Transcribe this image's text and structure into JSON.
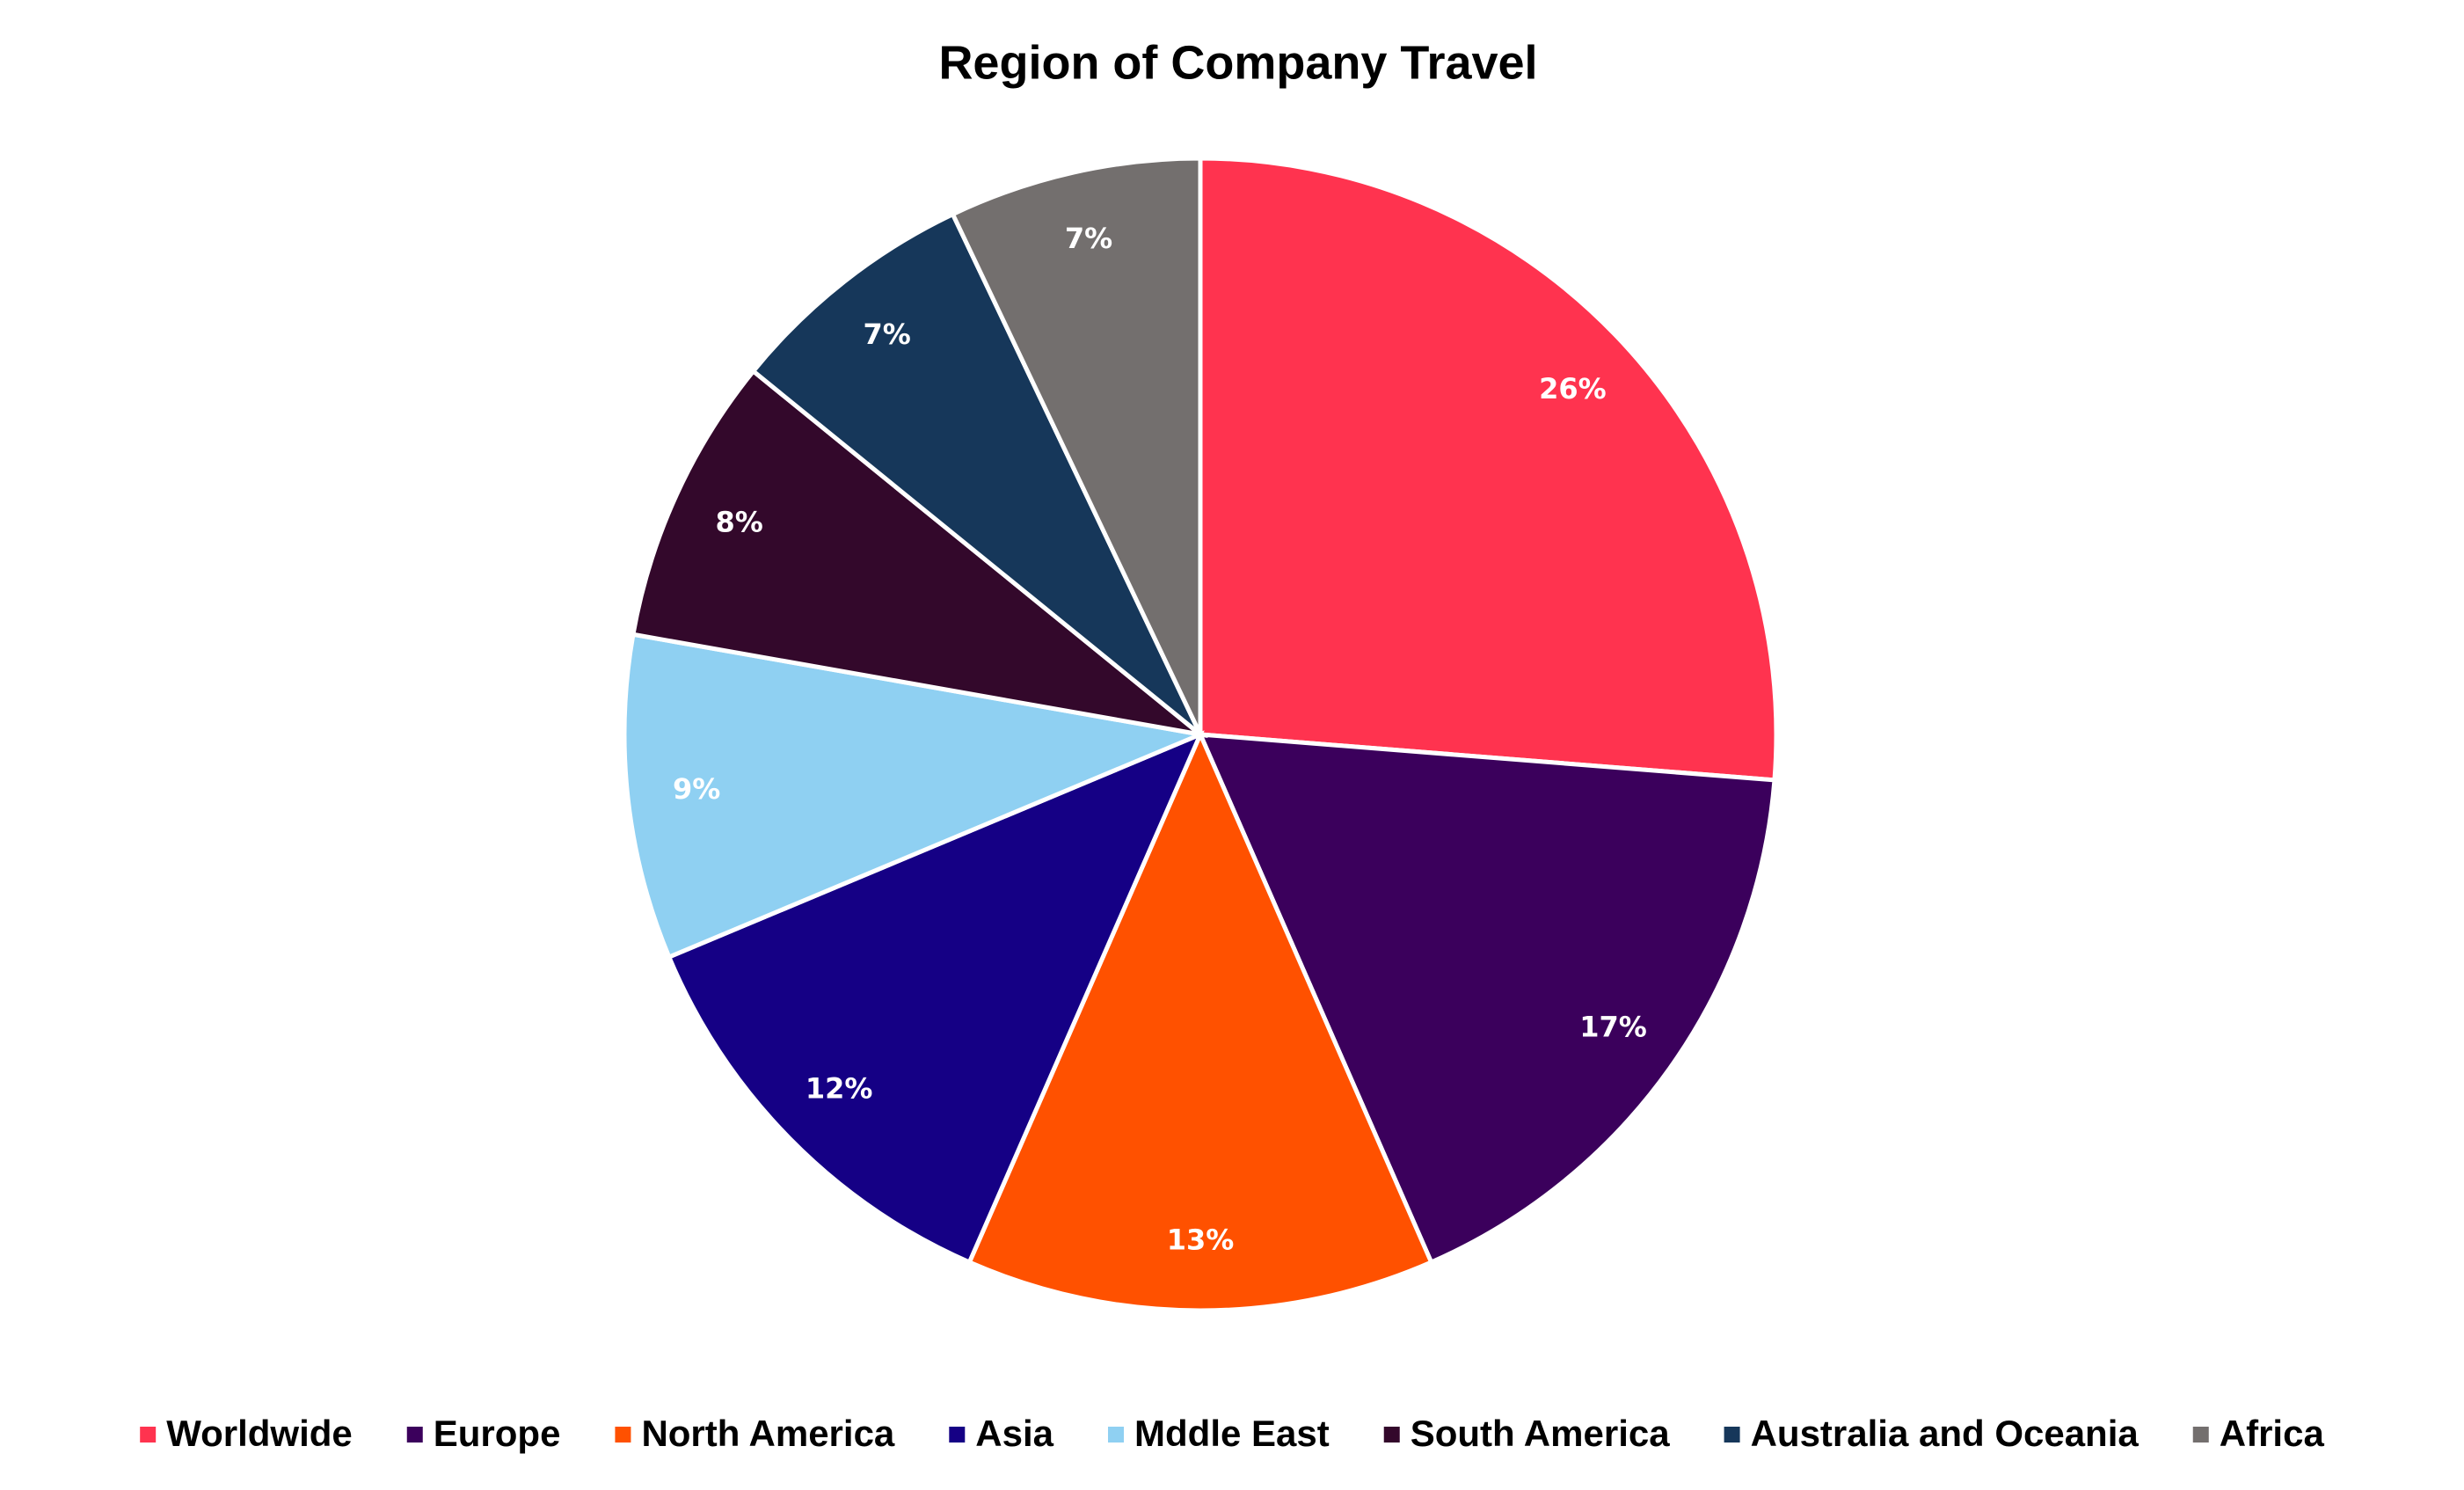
{
  "chart_data": {
    "type": "pie",
    "title": "Region of Company Travel",
    "categories": [
      "Worldwide",
      "Europe",
      "North America",
      "Asia",
      "Mddle East",
      "South America",
      "Australia and Oceania",
      "Africa"
    ],
    "values": [
      26,
      17,
      13,
      12,
      9,
      8,
      7,
      7
    ],
    "value_labels": [
      "26%",
      "17%",
      "13%",
      "12%",
      "9%",
      "8%",
      "7%",
      "7%"
    ],
    "colors": [
      "#ff334f",
      "#3b005c",
      "#ff5100",
      "#150085",
      "#8fd0f2",
      "#33082b",
      "#16375a",
      "#736f6e"
    ],
    "legend": "bottom"
  }
}
